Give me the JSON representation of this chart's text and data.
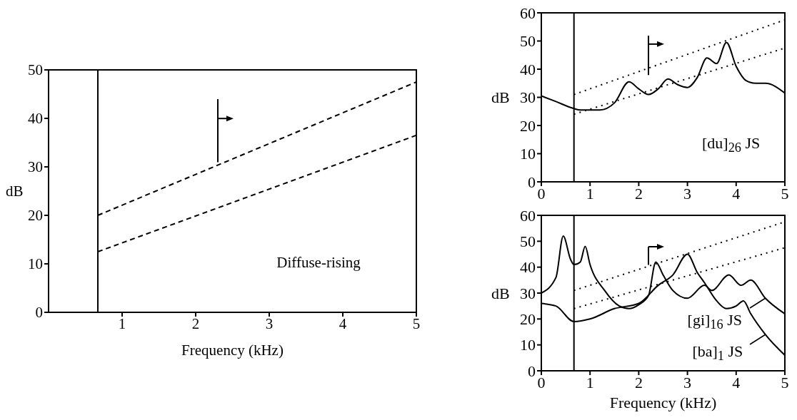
{
  "chart_data": [
    {
      "type": "line",
      "xlabel": "Frequency (kHz)",
      "ylabel": "dB",
      "annotations": [
        "Diffuse-rising"
      ],
      "xlim": [
        0,
        5
      ],
      "xticks": [
        1,
        2,
        3,
        4,
        5
      ],
      "ylim": [
        0,
        50
      ],
      "yticks": [
        0,
        10,
        20,
        30,
        40,
        50
      ],
      "marker": "none",
      "grid": false,
      "ref_lines": [
        {
          "axis": "x",
          "value": 0.67,
          "color": "#000000",
          "line_style": "solid"
        }
      ],
      "series": [
        {
          "color": "#000000",
          "line_style": "dashed",
          "x": [
            0.67,
            5
          ],
          "values": [
            20,
            47.5
          ]
        },
        {
          "color": "#000000",
          "line_style": "dashed",
          "x": [
            0.67,
            5
          ],
          "values": [
            12.5,
            36.5
          ]
        }
      ]
    },
    {
      "type": "line",
      "ylabel": "dB",
      "xlim": [
        0,
        5
      ],
      "xticks": [
        0,
        1,
        2,
        3,
        4,
        5
      ],
      "ylim": [
        0,
        60
      ],
      "yticks": [
        0,
        10,
        20,
        30,
        40,
        50,
        60
      ],
      "marker": "none",
      "grid": false,
      "ref_lines": [
        {
          "axis": "x",
          "value": 0.67,
          "color": "#000000",
          "line_style": "solid"
        }
      ],
      "series": [
        {
          "name": "[du]$_{26}$ JS",
          "color": "#000000",
          "line_style": "solid",
          "x": [
            0,
            0.3,
            0.67,
            0.8,
            1.2,
            1.5,
            1.8,
            2.0,
            2.2,
            2.4,
            2.6,
            2.8,
            3.0,
            3.2,
            3.4,
            3.6,
            3.8,
            4.0,
            4.2,
            4.4,
            4.6,
            5.0
          ],
          "values": [
            30.5,
            28.5,
            26,
            25.5,
            25.5,
            28,
            35.5,
            33,
            31,
            33,
            36.5,
            34.5,
            33.5,
            37,
            44,
            42,
            49.5,
            41,
            36,
            35,
            35,
            31.5
          ]
        },
        {
          "color": "#000000",
          "line_style": "dotted",
          "x": [
            0.67,
            5
          ],
          "values": [
            31,
            57.5
          ]
        },
        {
          "color": "#000000",
          "line_style": "dotted",
          "x": [
            0.67,
            5
          ],
          "values": [
            24,
            47.5
          ]
        }
      ]
    },
    {
      "type": "line",
      "xlabel": "Frequency (kHz)",
      "ylabel": "dB",
      "xlim": [
        0,
        5
      ],
      "xticks": [
        0,
        1,
        2,
        3,
        4,
        5
      ],
      "ylim": [
        0,
        60
      ],
      "yticks": [
        0,
        10,
        20,
        30,
        40,
        50,
        60
      ],
      "marker": "none",
      "grid": false,
      "legend": "bottom right",
      "ref_lines": [
        {
          "axis": "x",
          "value": 0.67,
          "color": "#000000",
          "line_style": "solid"
        }
      ],
      "series": [
        {
          "name": "[gi]$_{16}$ JS",
          "color": "#000000",
          "line_style": "solid",
          "x": [
            0,
            0.3,
            0.45,
            0.6,
            0.67,
            0.8,
            0.9,
            1.0,
            1.3,
            1.6,
            1.8,
            2.0,
            2.2,
            2.35,
            2.5,
            2.7,
            3.0,
            3.35,
            3.5,
            3.85,
            4.1,
            4.3,
            4.6,
            5.0
          ],
          "values": [
            30,
            36,
            52,
            43,
            41,
            42,
            48,
            41,
            31,
            25,
            24,
            25.5,
            29,
            42,
            37,
            31,
            28,
            33,
            31,
            37,
            33,
            35,
            28,
            22
          ]
        },
        {
          "name": "[ba]$_{1}$ JS",
          "color": "#000000",
          "line_style": "solid",
          "x": [
            0,
            0.3,
            0.67,
            1.0,
            1.5,
            2.0,
            2.4,
            2.7,
            3.0,
            3.2,
            3.35,
            3.6,
            3.8,
            4.0,
            4.15,
            4.3,
            4.6,
            5.0
          ],
          "values": [
            26,
            25,
            19,
            20,
            24,
            26,
            33,
            37,
            45,
            38,
            34,
            27,
            24,
            25,
            27,
            22,
            14,
            6
          ]
        },
        {
          "color": "#000000",
          "line_style": "dotted",
          "x": [
            0.67,
            5
          ],
          "values": [
            31,
            57.5
          ]
        },
        {
          "color": "#000000",
          "line_style": "dotted",
          "x": [
            0.67,
            5
          ],
          "values": [
            24,
            47.5
          ]
        }
      ]
    }
  ]
}
